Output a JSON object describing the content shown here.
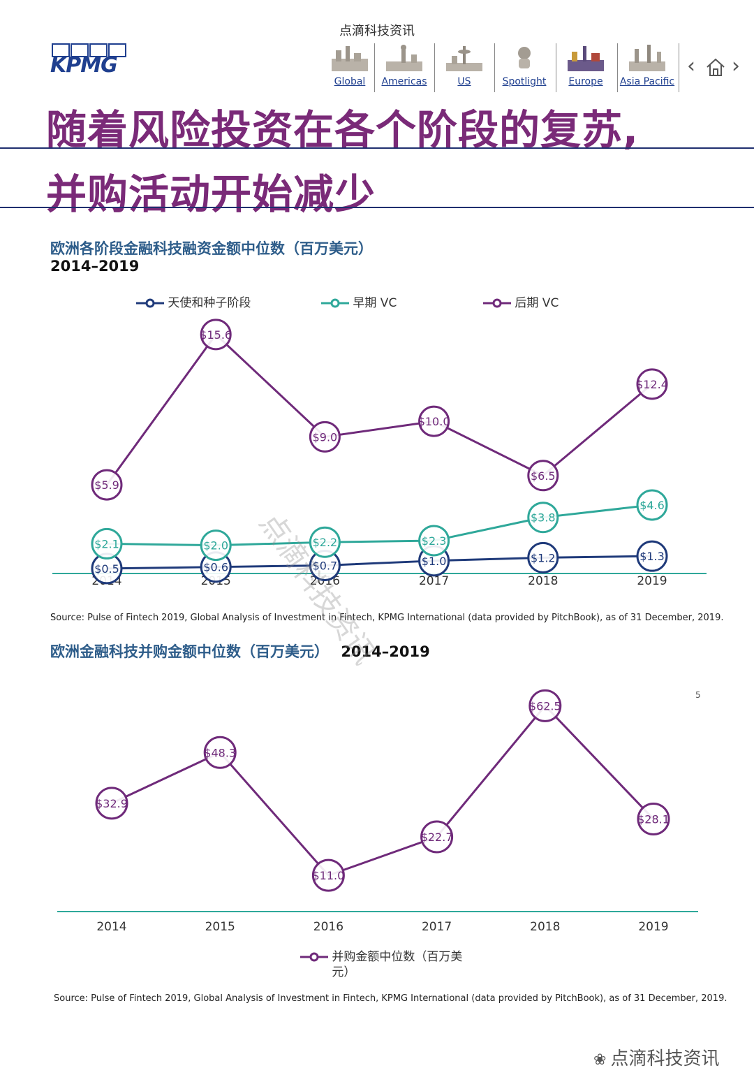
{
  "header": {
    "caption": "点滴科技资讯",
    "logo_text": "KPMG",
    "nav": [
      {
        "label": "Global",
        "icon": "city-skyline-icon"
      },
      {
        "label": "Americas",
        "icon": "statue-skyline-icon"
      },
      {
        "label": "US",
        "icon": "space-needle-skyline-icon"
      },
      {
        "label": "Spotlight",
        "icon": "bust-statue-icon"
      },
      {
        "label": "Europe",
        "icon": "europe-landmarks-icon"
      },
      {
        "label": "Asia Pacific",
        "icon": "asia-skyline-icon"
      }
    ],
    "prev_icon": "chevron-left-icon",
    "home_icon": "home-icon",
    "next_icon": "chevron-right-icon"
  },
  "title_line1": "随着风险投资在各个阶段的复苏,",
  "title_line2": "并购活动开始减少",
  "chart_data": [
    {
      "type": "line",
      "title": "欧洲各阶段金融科技融资金额中位数（百万美元）",
      "subtitle": "2014–2019",
      "categories": [
        "2014",
        "2015",
        "2016",
        "2017",
        "2018",
        "2019"
      ],
      "series": [
        {
          "name": "天使和种子阶段",
          "color": "#1f3a7a",
          "values": [
            0.5,
            0.6,
            0.7,
            1.0,
            1.2,
            1.3
          ],
          "labels": [
            "$0.5",
            "$0.6",
            "$0.7",
            "$1.0",
            "$1.2",
            "$1.3"
          ]
        },
        {
          "name": "早期 VC",
          "color": "#2fa89a",
          "values": [
            2.1,
            2.0,
            2.2,
            2.3,
            3.8,
            4.6
          ],
          "labels": [
            "$2.1",
            "$2.0",
            "$2.2",
            "$2.3",
            "$3.8",
            "$4.6"
          ]
        },
        {
          "name": "后期 VC",
          "color": "#6f2a7a",
          "values": [
            5.9,
            15.6,
            9.0,
            10.0,
            6.5,
            12.4
          ],
          "labels": [
            "$5.9",
            "$15.6",
            "$9.0",
            "$10.0",
            "$6.5",
            "$12.4"
          ]
        }
      ],
      "ylim": [
        0,
        16
      ],
      "grid": false,
      "legend_position": "top",
      "source": "Source: Pulse of Fintech 2019, Global Analysis of Investment in Fintech, KPMG International (data provided by PitchBook), as of 31 December, 2019."
    },
    {
      "type": "line",
      "title": "欧洲金融科技并购金额中位数（百万美元）",
      "subtitle": "2014–2019",
      "categories": [
        "2014",
        "2015",
        "2016",
        "2017",
        "2018",
        "2019"
      ],
      "series": [
        {
          "name": "并购金额中位数（百万美元）",
          "color": "#6f2a7a",
          "values": [
            32.9,
            48.3,
            11.0,
            22.7,
            62.5,
            28.1
          ],
          "labels": [
            "$32.9",
            "$48.3",
            "$11.0",
            "$22.7",
            "$62.5",
            "$28.1"
          ]
        }
      ],
      "ylim": [
        0,
        70
      ],
      "grid": false,
      "legend_position": "bottom",
      "source": "Source: Pulse of Fintech 2019, Global Analysis of Investment in Fintech, KPMG International (data provided by PitchBook), as of 31 December, 2019."
    }
  ],
  "watermark": "点滴科技资讯",
  "stray_glyph": "5"
}
